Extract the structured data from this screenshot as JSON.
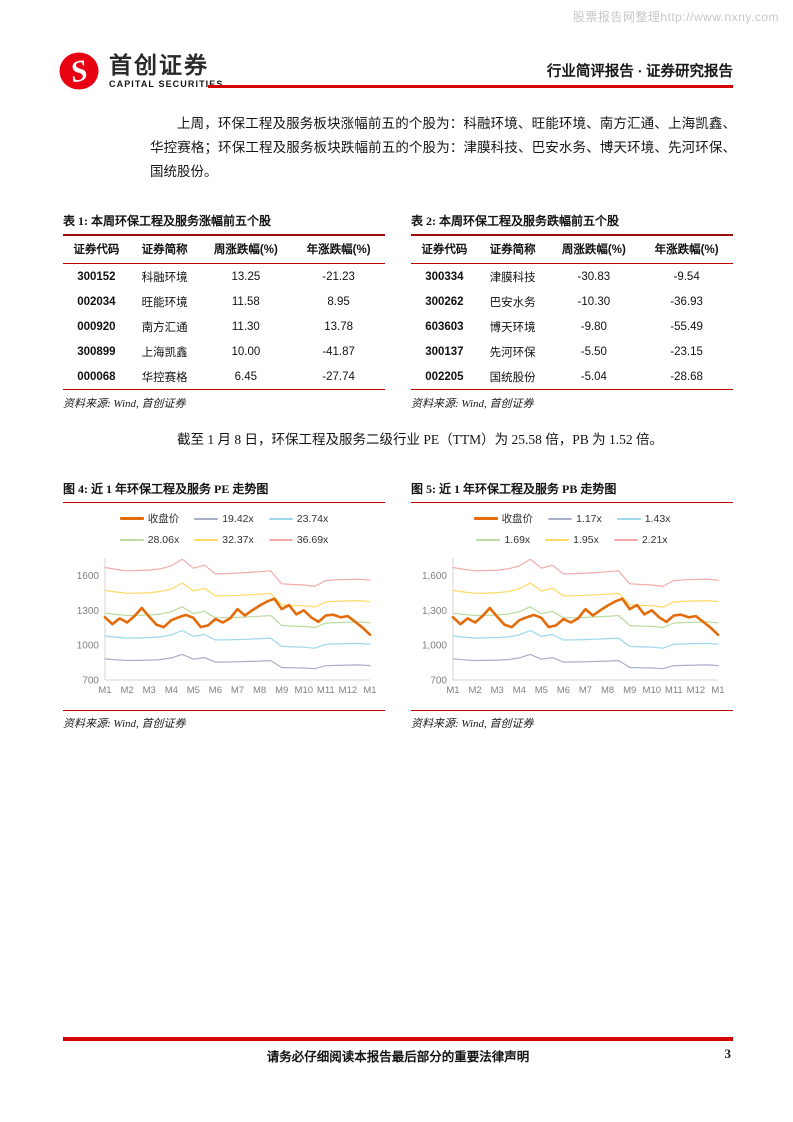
{
  "watermark": "股票报告网整理http://www.nxny.com",
  "header": {
    "brand_cn": "首创证券",
    "brand_en": "CAPITAL SECURITIES",
    "report_type": "行业简评报告 · 证券研究报告",
    "accent_red": "#d40000",
    "logo_red": "#e60012"
  },
  "para1": "上周，环保工程及服务板块涨幅前五的个股为：科融环境、旺能环境、南方汇通、上海凯鑫、华控赛格；环保工程及服务板块跌幅前五的个股为：津膜科技、巴安水务、博天环境、先河环保、国统股份。",
  "para2": "截至 1 月 8 日，环保工程及服务二级行业 PE（TTM）为 25.58 倍，PB 为 1.52 倍。",
  "tables": [
    {
      "title": "表 1: 本周环保工程及服务涨幅前五个股",
      "headers": [
        "证券代码",
        "证券简称",
        "周涨跌幅(%)",
        "年涨跌幅(%)"
      ],
      "rows": [
        [
          "300152",
          "科融环境",
          "13.25",
          "-21.23"
        ],
        [
          "002034",
          "旺能环境",
          "11.58",
          "8.95"
        ],
        [
          "000920",
          "南方汇通",
          "11.30",
          "13.78"
        ],
        [
          "300899",
          "上海凯鑫",
          "10.00",
          "-41.87"
        ],
        [
          "000068",
          "华控赛格",
          "6.45",
          "-27.74"
        ]
      ],
      "source": "资料来源: Wind, 首创证券"
    },
    {
      "title": "表 2: 本周环保工程及服务跌幅前五个股",
      "headers": [
        "证券代码",
        "证券简称",
        "周涨跌幅(%)",
        "年涨跌幅(%)"
      ],
      "rows": [
        [
          "300334",
          "津膜科技",
          "-30.83",
          "-9.54"
        ],
        [
          "300262",
          "巴安水务",
          "-10.30",
          "-36.93"
        ],
        [
          "603603",
          "博天环境",
          "-9.80",
          "-55.49"
        ],
        [
          "300137",
          "先河环保",
          "-5.50",
          "-23.15"
        ],
        [
          "002205",
          "国统股份",
          "-5.04",
          "-28.68"
        ]
      ],
      "source": "资料来源: Wind, 首创证券"
    }
  ],
  "chart_data": [
    {
      "type": "line",
      "title": "图 4: 近 1 年环保工程及服务 PE 走势图",
      "source": "资料来源: Wind, 首创证券",
      "x_ticks": [
        "M1",
        "M2",
        "M3",
        "M4",
        "M5",
        "M6",
        "M7",
        "M8",
        "M9",
        "M10",
        "M11",
        "M12",
        "M1"
      ],
      "ylim": [
        700,
        1750
      ],
      "y_ticks": [
        700,
        1000,
        1300,
        1600
      ],
      "y_tick_labels": [
        "700",
        "1000",
        "1300",
        "1600"
      ],
      "grid": false,
      "legend_position": "top",
      "series": [
        {
          "name": "收盘价",
          "color": "#e36c09",
          "width": 2.6,
          "values": [
            1240,
            1180,
            1230,
            1195,
            1250,
            1320,
            1245,
            1175,
            1155,
            1215,
            1240,
            1260,
            1235,
            1155,
            1170,
            1225,
            1195,
            1230,
            1310,
            1255,
            1300,
            1340,
            1375,
            1400,
            1310,
            1345,
            1265,
            1300,
            1240,
            1200,
            1255,
            1262,
            1240,
            1250,
            1200,
            1150,
            1090
          ]
        },
        {
          "name": "19.42x",
          "color": "#a9aec9",
          "width": 1.2,
          "values": [
            882,
            874,
            868,
            869,
            871,
            876,
            890,
            920,
            879,
            893,
            854,
            855,
            857,
            860,
            863,
            868,
            808,
            805,
            803,
            797,
            823,
            826,
            828,
            830,
            824
          ]
        },
        {
          "name": "23.74x",
          "color": "#9cd7ee",
          "width": 1.2,
          "values": [
            1079,
            1069,
            1061,
            1062,
            1065,
            1071,
            1088,
            1126,
            1075,
            1092,
            1044,
            1046,
            1048,
            1051,
            1056,
            1061,
            989,
            985,
            982,
            974,
            1007,
            1011,
            1013,
            1015,
            1008
          ]
        },
        {
          "name": "28.06x",
          "color": "#bcdba1",
          "width": 1.2,
          "values": [
            1276,
            1264,
            1255,
            1256,
            1259,
            1267,
            1287,
            1331,
            1271,
            1291,
            1235,
            1236,
            1239,
            1243,
            1248,
            1255,
            1169,
            1164,
            1161,
            1152,
            1190,
            1195,
            1197,
            1200,
            1192
          ]
        },
        {
          "name": "32.37x",
          "color": "#ffd966",
          "width": 1.2,
          "values": [
            1471,
            1457,
            1446,
            1448,
            1452,
            1461,
            1484,
            1535,
            1466,
            1489,
            1424,
            1425,
            1429,
            1433,
            1439,
            1446,
            1348,
            1342,
            1339,
            1328,
            1372,
            1378,
            1380,
            1383,
            1374
          ]
        },
        {
          "name": "36.69x",
          "color": "#f2abab",
          "width": 1.2,
          "values": [
            1668,
            1652,
            1640,
            1642,
            1646,
            1656,
            1682,
            1740,
            1662,
            1688,
            1614,
            1616,
            1620,
            1625,
            1632,
            1640,
            1528,
            1522,
            1518,
            1506,
            1556,
            1562,
            1565,
            1568,
            1558
          ]
        }
      ]
    },
    {
      "type": "line",
      "title": "图 5: 近 1 年环保工程及服务 PB 走势图",
      "source": "资料来源: Wind, 首创证券",
      "x_ticks": [
        "M1",
        "M2",
        "M3",
        "M4",
        "M5",
        "M6",
        "M7",
        "M8",
        "M9",
        "M10",
        "M11",
        "M12",
        "M1"
      ],
      "ylim": [
        700,
        1750
      ],
      "y_ticks": [
        700,
        1000,
        1300,
        1600
      ],
      "y_tick_labels": [
        "700",
        "1,000",
        "1,300",
        "1,600"
      ],
      "grid": false,
      "legend_position": "top",
      "series": [
        {
          "name": "收盘价",
          "color": "#e36c09",
          "width": 2.6,
          "values": [
            1240,
            1180,
            1230,
            1195,
            1250,
            1320,
            1245,
            1175,
            1155,
            1215,
            1240,
            1260,
            1235,
            1155,
            1170,
            1225,
            1195,
            1230,
            1310,
            1255,
            1300,
            1340,
            1375,
            1400,
            1310,
            1345,
            1265,
            1300,
            1240,
            1200,
            1255,
            1262,
            1240,
            1250,
            1200,
            1150,
            1090
          ]
        },
        {
          "name": "1.17x",
          "color": "#a9aec9",
          "width": 1.2,
          "values": [
            882,
            874,
            868,
            869,
            871,
            876,
            890,
            920,
            879,
            893,
            854,
            855,
            857,
            860,
            863,
            868,
            808,
            805,
            803,
            797,
            823,
            826,
            828,
            830,
            824
          ]
        },
        {
          "name": "1.43x",
          "color": "#9cd7ee",
          "width": 1.2,
          "values": [
            1079,
            1069,
            1061,
            1062,
            1065,
            1071,
            1088,
            1126,
            1075,
            1092,
            1044,
            1046,
            1048,
            1051,
            1056,
            1061,
            989,
            985,
            982,
            974,
            1007,
            1011,
            1013,
            1015,
            1008
          ]
        },
        {
          "name": "1.69x",
          "color": "#bcdba1",
          "width": 1.2,
          "values": [
            1276,
            1264,
            1255,
            1256,
            1259,
            1267,
            1287,
            1331,
            1271,
            1291,
            1235,
            1236,
            1239,
            1243,
            1248,
            1255,
            1169,
            1164,
            1161,
            1152,
            1190,
            1195,
            1197,
            1200,
            1192
          ]
        },
        {
          "name": "1.95x",
          "color": "#ffd966",
          "width": 1.2,
          "values": [
            1471,
            1457,
            1446,
            1448,
            1452,
            1461,
            1484,
            1535,
            1466,
            1489,
            1424,
            1425,
            1429,
            1433,
            1439,
            1446,
            1348,
            1342,
            1339,
            1328,
            1372,
            1378,
            1380,
            1383,
            1374
          ]
        },
        {
          "name": "2.21x",
          "color": "#f2abab",
          "width": 1.2,
          "values": [
            1668,
            1652,
            1640,
            1642,
            1646,
            1656,
            1682,
            1740,
            1662,
            1688,
            1614,
            1616,
            1620,
            1625,
            1632,
            1640,
            1528,
            1522,
            1518,
            1506,
            1556,
            1562,
            1565,
            1568,
            1558
          ]
        }
      ]
    }
  ],
  "footer": {
    "disclaimer": "请务必仔细阅读本报告最后部分的重要法律声明",
    "page": "3"
  }
}
